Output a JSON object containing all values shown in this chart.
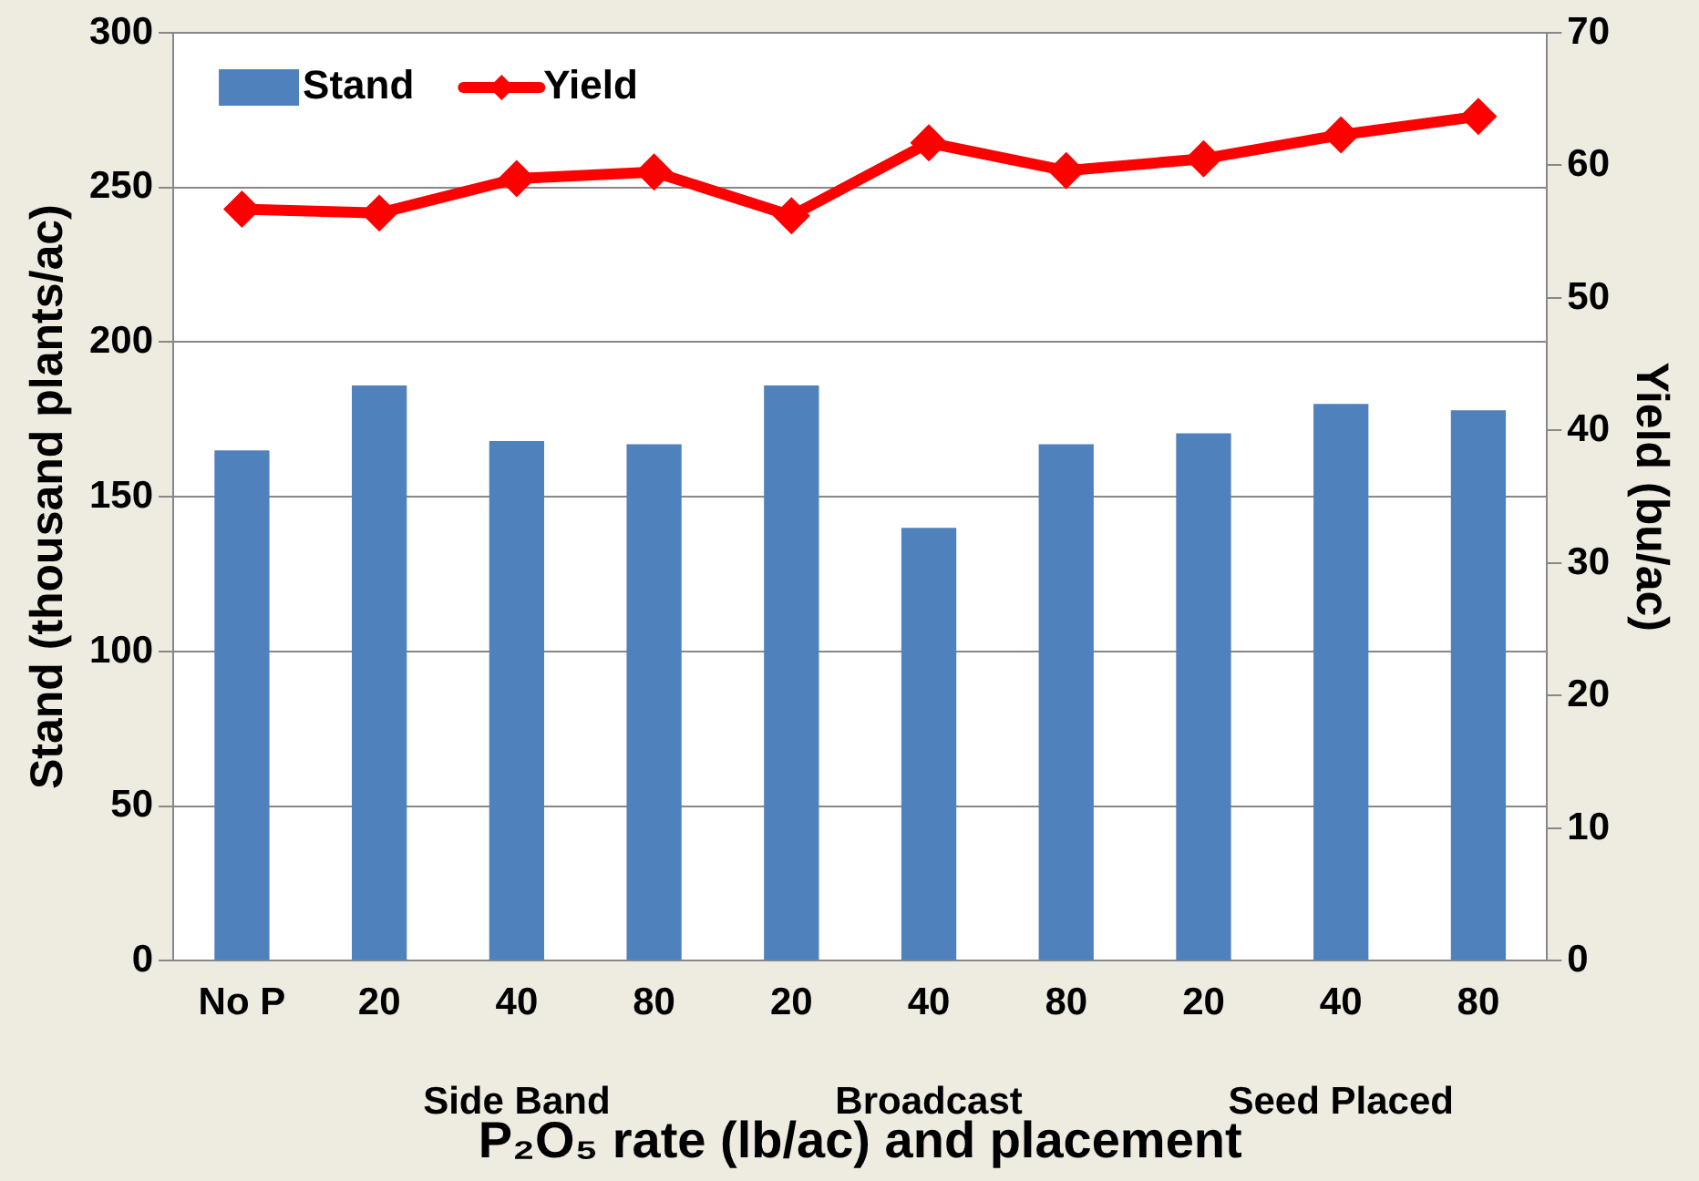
{
  "chart_data": {
    "type": "bar",
    "xlabel": "P₂O₅ rate (lb/ac) and placement",
    "ylabel": "Stand (thousand plants/ac)",
    "y2label": "Yield (bu/ac)",
    "categories": [
      "No P",
      "20",
      "40",
      "80",
      "20",
      "40",
      "80",
      "20",
      "40",
      "80"
    ],
    "series": [
      {
        "name": "Stand",
        "color": "#4f81bd",
        "values": [
          165,
          186,
          168,
          167,
          186,
          140,
          167,
          170.5,
          180,
          178
        ]
      },
      {
        "name": "Yield",
        "type": "line",
        "axis": "y2",
        "color": "#ff0000",
        "marker": "diamond",
        "values": [
          56.7,
          56.4,
          59.0,
          59.5,
          56.2,
          61.7,
          59.6,
          60.5,
          62.3,
          63.7
        ]
      }
    ],
    "ylim": [
      0,
      300
    ],
    "yticks": [
      0,
      50,
      100,
      150,
      200,
      250,
      300
    ],
    "y2lim": [
      0,
      70
    ],
    "y2ticks": [
      0,
      10,
      20,
      30,
      40,
      50,
      60,
      70
    ],
    "grid": "y",
    "legend": "top left",
    "annotations": [
      "Side Band",
      "Broadcast",
      "Seed Placed"
    ]
  }
}
